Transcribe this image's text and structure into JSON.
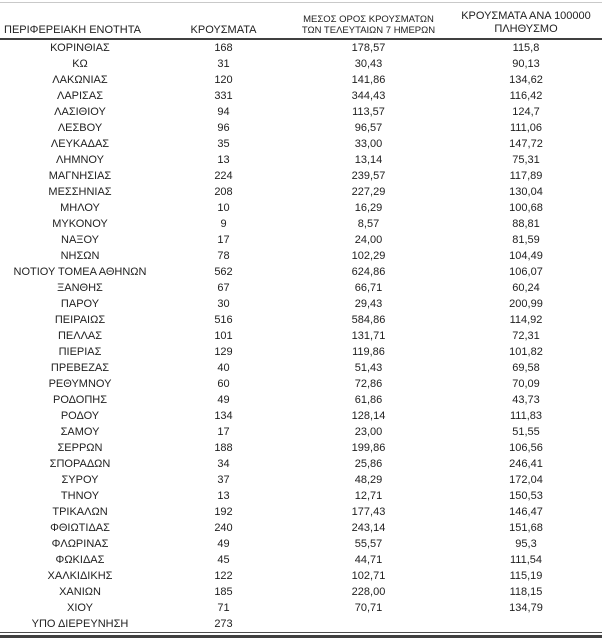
{
  "colors": {
    "background": "#ffffff",
    "text": "#212121",
    "rule_dark": "#404040",
    "rule_light": "#c9c9c9"
  },
  "table": {
    "header": {
      "col1": "ΠΕΡΙΦΕΡΕΙΑΚΗ ΕΝΟΤΗΤΑ",
      "col2": "ΚΡΟΥΣΜΑΤΑ",
      "col3_line1": "ΜΕΣΟΣ ΟΡΟΣ ΚΡΟΥΣΜΑΤΩΝ",
      "col3_line2": "ΤΩΝ ΤΕΛΕΥΤΑΙΩΝ 7 ΗΜΕΡΩΝ",
      "col4_line1": "ΚΡΟΥΣΜΑΤΑ ΑΝΑ 100000",
      "col4_line2": "ΠΛΗΘΥΣΜΟ"
    },
    "rows": [
      [
        "ΚΟΡΙΝΘΙΑΣ",
        "168",
        "178,57",
        "115,8"
      ],
      [
        "ΚΩ",
        "31",
        "30,43",
        "90,13"
      ],
      [
        "ΛΑΚΩΝΙΑΣ",
        "120",
        "141,86",
        "134,62"
      ],
      [
        "ΛΑΡΙΣΑΣ",
        "331",
        "344,43",
        "116,42"
      ],
      [
        "ΛΑΣΙΘΙΟΥ",
        "94",
        "113,57",
        "124,7"
      ],
      [
        "ΛΕΣΒΟΥ",
        "96",
        "96,57",
        "111,06"
      ],
      [
        "ΛΕΥΚΑΔΑΣ",
        "35",
        "33,00",
        "147,72"
      ],
      [
        "ΛΗΜΝΟΥ",
        "13",
        "13,14",
        "75,31"
      ],
      [
        "ΜΑΓΝΗΣΙΑΣ",
        "224",
        "239,57",
        "117,89"
      ],
      [
        "ΜΕΣΣΗΝΙΑΣ",
        "208",
        "227,29",
        "130,04"
      ],
      [
        "ΜΗΛΟΥ",
        "10",
        "16,29",
        "100,68"
      ],
      [
        "ΜΥΚΟΝΟΥ",
        "9",
        "8,57",
        "88,81"
      ],
      [
        "ΝΑΞΟΥ",
        "17",
        "24,00",
        "81,59"
      ],
      [
        "ΝΗΣΩΝ",
        "78",
        "102,29",
        "104,49"
      ],
      [
        "ΝΟΤΙΟΥ ΤΟΜΕΑ ΑΘΗΝΩΝ",
        "562",
        "624,86",
        "106,07"
      ],
      [
        "ΞΑΝΘΗΣ",
        "67",
        "66,71",
        "60,24"
      ],
      [
        "ΠΑΡΟΥ",
        "30",
        "29,43",
        "200,99"
      ],
      [
        "ΠΕΙΡΑΙΩΣ",
        "516",
        "584,86",
        "114,92"
      ],
      [
        "ΠΕΛΛΑΣ",
        "101",
        "131,71",
        "72,31"
      ],
      [
        "ΠΙΕΡΙΑΣ",
        "129",
        "119,86",
        "101,82"
      ],
      [
        "ΠΡΕΒΕΖΑΣ",
        "40",
        "51,43",
        "69,58"
      ],
      [
        "ΡΕΘΥΜΝΟΥ",
        "60",
        "72,86",
        "70,09"
      ],
      [
        "ΡΟΔΟΠΗΣ",
        "49",
        "61,86",
        "43,73"
      ],
      [
        "ΡΟΔΟΥ",
        "134",
        "128,14",
        "111,83"
      ],
      [
        "ΣΑΜΟΥ",
        "17",
        "23,00",
        "51,55"
      ],
      [
        "ΣΕΡΡΩΝ",
        "188",
        "199,86",
        "106,56"
      ],
      [
        "ΣΠΟΡΑΔΩΝ",
        "34",
        "25,86",
        "246,41"
      ],
      [
        "ΣΥΡΟΥ",
        "37",
        "48,29",
        "172,04"
      ],
      [
        "ΤΗΝΟΥ",
        "13",
        "12,71",
        "150,53"
      ],
      [
        "ΤΡΙΚΑΛΩΝ",
        "192",
        "177,43",
        "146,47"
      ],
      [
        "ΦΘΙΩΤΙΔΑΣ",
        "240",
        "243,14",
        "151,68"
      ],
      [
        "ΦΛΩΡΙΝΑΣ",
        "49",
        "55,57",
        "95,3"
      ],
      [
        "ΦΩΚΙΔΑΣ",
        "45",
        "44,71",
        "111,54"
      ],
      [
        "ΧΑΛΚΙΔΙΚΗΣ",
        "122",
        "102,71",
        "115,19"
      ],
      [
        "ΧΑΝΙΩΝ",
        "185",
        "228,00",
        "118,15"
      ],
      [
        "ΧΙΟΥ",
        "71",
        "70,71",
        "134,79"
      ],
      [
        "ΥΠΟ ΔΙΕΡΕΥΝΗΣΗ",
        "273",
        "",
        ""
      ]
    ]
  }
}
